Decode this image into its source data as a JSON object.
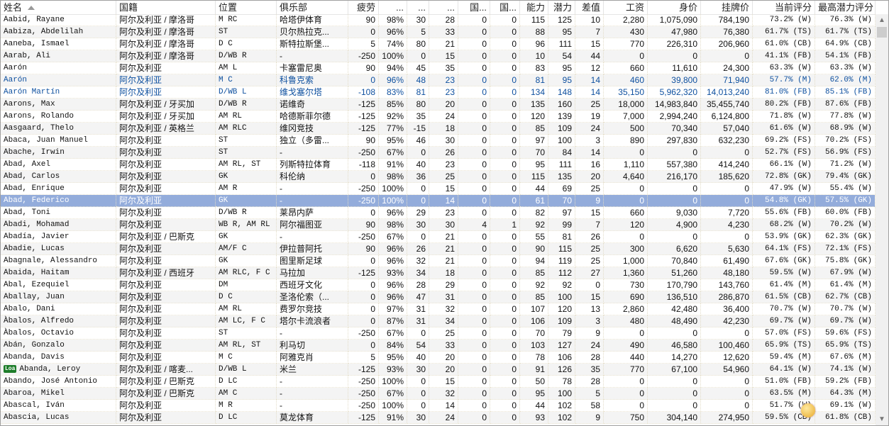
{
  "columns": [
    "姓名",
    "国籍",
    "位置",
    "俱乐部",
    "疲劳",
    "...",
    "...",
    "...",
    "国...",
    "国...",
    "能力",
    "潜力",
    "差值",
    "工资",
    "身价",
    "挂牌价",
    "当前评分",
    "最高潜力评分"
  ],
  "sort_column": "姓名",
  "colors": {
    "selected_row": "#93acdb",
    "highlight_text": "#0d4f9e",
    "loan_badge": "#1e7d2a"
  },
  "selected_row_index": 15,
  "highlighted_rows": [
    5,
    6
  ],
  "rows": [
    {
      "badge": "",
      "cells": [
        "Aabid, Rayane",
        "阿尔及利亚 / 摩洛哥",
        "M RC",
        "哈塔伊体育",
        "90",
        "98%",
        "30",
        "28",
        "0",
        "0",
        "115",
        "125",
        "10",
        "2,280",
        "1,075,090",
        "784,190",
        "73.2% (W)",
        "76.3% (W)"
      ]
    },
    {
      "badge": "",
      "cells": [
        "Aabiza, Abdelilah",
        "阿尔及利亚 / 摩洛哥",
        "ST",
        "贝尔热拉克...",
        "0",
        "96%",
        "5",
        "33",
        "0",
        "0",
        "88",
        "95",
        "7",
        "430",
        "47,980",
        "76,380",
        "61.7% (TS)",
        "61.7% (TS)"
      ]
    },
    {
      "badge": "",
      "cells": [
        "Aaneba, Ismael",
        "阿尔及利亚 / 摩洛哥",
        "D C",
        "斯特拉斯堡...",
        "5",
        "74%",
        "80",
        "21",
        "0",
        "0",
        "96",
        "111",
        "15",
        "770",
        "226,310",
        "206,960",
        "61.0% (CB)",
        "64.9% (CB)"
      ]
    },
    {
      "badge": "",
      "cells": [
        "Aarab, Ali",
        "阿尔及利亚 / 摩洛哥",
        "D/WB R",
        "-",
        "-250",
        "100%",
        "0",
        "15",
        "0",
        "0",
        "10",
        "54",
        "44",
        "0",
        "0",
        "0",
        "41.1% (FB)",
        "54.1% (FB)"
      ]
    },
    {
      "badge": "",
      "cells": [
        "Aarón",
        "阿尔及利亚",
        "AM L",
        "卡塞雷尼奥",
        "90",
        "94%",
        "45",
        "35",
        "0",
        "0",
        "83",
        "95",
        "12",
        "660",
        "11,610",
        "24,300",
        "63.3% (W)",
        "63.3% (W)"
      ]
    },
    {
      "badge": "",
      "cells": [
        "Aarón",
        "阿尔及利亚",
        "M C",
        "科鲁克索",
        "0",
        "96%",
        "48",
        "23",
        "0",
        "0",
        "81",
        "95",
        "14",
        "460",
        "39,800",
        "71,940",
        "57.7% (M)",
        "62.0% (M)"
      ]
    },
    {
      "badge": "",
      "cells": [
        "Aarón Martín",
        "阿尔及利亚",
        "D/WB L",
        "维戈塞尔塔",
        "-108",
        "83%",
        "81",
        "23",
        "0",
        "0",
        "134",
        "148",
        "14",
        "35,150",
        "5,962,320",
        "14,013,240",
        "81.0% (FB)",
        "85.1% (FB)"
      ]
    },
    {
      "badge": "",
      "cells": [
        "Aarons, Max",
        "阿尔及利亚 / 牙买加",
        "D/WB R",
        "诺维奇",
        "-125",
        "85%",
        "80",
        "20",
        "0",
        "0",
        "135",
        "160",
        "25",
        "18,000",
        "14,983,840",
        "35,455,740",
        "80.2% (FB)",
        "87.6% (FB)"
      ]
    },
    {
      "badge": "",
      "cells": [
        "Aarons, Rolando",
        "阿尔及利亚 / 牙买加",
        "AM RL",
        "哈德斯菲尔德",
        "-125",
        "92%",
        "35",
        "24",
        "0",
        "0",
        "120",
        "139",
        "19",
        "7,000",
        "2,994,240",
        "6,124,800",
        "71.8% (W)",
        "77.8% (W)"
      ]
    },
    {
      "badge": "",
      "cells": [
        "Aasgaard, Thelo",
        "阿尔及利亚 / 英格兰",
        "AM RLC",
        "维冈竞技",
        "-125",
        "77%",
        "-15",
        "18",
        "0",
        "0",
        "85",
        "109",
        "24",
        "500",
        "70,340",
        "57,040",
        "61.6% (W)",
        "68.9% (W)"
      ]
    },
    {
      "badge": "",
      "cells": [
        "Abaca, Juan Manuel",
        "阿尔及利亚",
        "ST",
        "独立（多雷...",
        "90",
        "95%",
        "46",
        "30",
        "0",
        "0",
        "97",
        "100",
        "3",
        "890",
        "297,830",
        "632,230",
        "69.2% (FS)",
        "70.2% (FS)"
      ]
    },
    {
      "badge": "",
      "cells": [
        "Abache, Irwin",
        "阿尔及利亚",
        "ST",
        "-",
        "-250",
        "67%",
        "0",
        "26",
        "0",
        "0",
        "70",
        "84",
        "14",
        "0",
        "0",
        "0",
        "52.7% (FS)",
        "56.9% (FS)"
      ]
    },
    {
      "badge": "",
      "cells": [
        "Abad, Axel",
        "阿尔及利亚",
        "AM RL, ST",
        "列斯特拉体育",
        "-118",
        "91%",
        "40",
        "23",
        "0",
        "0",
        "95",
        "111",
        "16",
        "1,110",
        "557,380",
        "414,240",
        "66.1% (W)",
        "71.2% (W)"
      ]
    },
    {
      "badge": "",
      "cells": [
        "Abad, Carlos",
        "阿尔及利亚",
        "GK",
        "科伦纳",
        "0",
        "98%",
        "36",
        "25",
        "0",
        "0",
        "115",
        "135",
        "20",
        "4,640",
        "216,170",
        "185,620",
        "72.8% (GK)",
        "79.4% (GK)"
      ]
    },
    {
      "badge": "",
      "cells": [
        "Abad, Enrique",
        "阿尔及利亚",
        "AM R",
        "-",
        "-250",
        "100%",
        "0",
        "15",
        "0",
        "0",
        "44",
        "69",
        "25",
        "0",
        "0",
        "0",
        "47.9% (W)",
        "55.4% (W)"
      ]
    },
    {
      "badge": "",
      "cells": [
        "Abad, Federico",
        "阿尔及利亚",
        "GK",
        "-",
        "-250",
        "100%",
        "0",
        "14",
        "0",
        "0",
        "61",
        "70",
        "9",
        "0",
        "0",
        "0",
        "54.8% (GK)",
        "57.5% (GK)"
      ]
    },
    {
      "badge": "",
      "cells": [
        "Abad, Toni",
        "阿尔及利亚",
        "D/WB R",
        "莱昂内萨",
        "0",
        "96%",
        "29",
        "23",
        "0",
        "0",
        "82",
        "97",
        "15",
        "660",
        "9,030",
        "7,720",
        "55.6% (FB)",
        "60.0% (FB)"
      ]
    },
    {
      "badge": "",
      "cells": [
        "Abadi, Mohamad",
        "阿尔及利亚",
        "WB R, AM RL",
        "阿尔福图亚",
        "90",
        "98%",
        "30",
        "30",
        "4",
        "1",
        "92",
        "99",
        "7",
        "120",
        "4,900",
        "4,230",
        "68.2% (W)",
        "70.2% (W)"
      ]
    },
    {
      "badge": "",
      "cells": [
        "Abadía, Javier",
        "阿尔及利亚 / 巴斯克",
        "GK",
        "-",
        "-250",
        "67%",
        "0",
        "21",
        "0",
        "0",
        "55",
        "81",
        "26",
        "0",
        "0",
        "0",
        "53.9% (GK)",
        "62.3% (GK)"
      ]
    },
    {
      "badge": "",
      "cells": [
        "Abadie, Lucas",
        "阿尔及利亚",
        "AM/F C",
        "伊拉普阿托",
        "90",
        "96%",
        "26",
        "21",
        "0",
        "0",
        "90",
        "115",
        "25",
        "300",
        "6,620",
        "5,630",
        "64.1% (FS)",
        "72.1% (FS)"
      ]
    },
    {
      "badge": "",
      "cells": [
        "Abagnale, Alessandro",
        "阿尔及利亚",
        "GK",
        "图里斯足球",
        "0",
        "96%",
        "32",
        "21",
        "0",
        "0",
        "94",
        "119",
        "25",
        "1,000",
        "70,840",
        "61,490",
        "67.6% (GK)",
        "75.8% (GK)"
      ]
    },
    {
      "badge": "",
      "cells": [
        "Abaida, Haitam",
        "阿尔及利亚 / 西班牙",
        "AM RLC, F C",
        "马拉加",
        "-125",
        "93%",
        "34",
        "18",
        "0",
        "0",
        "85",
        "112",
        "27",
        "1,360",
        "51,260",
        "48,180",
        "59.5% (W)",
        "67.9% (W)"
      ]
    },
    {
      "badge": "",
      "cells": [
        "Abal, Ezequiel",
        "阿尔及利亚",
        "DM",
        "西班牙文化",
        "0",
        "96%",
        "28",
        "29",
        "0",
        "0",
        "92",
        "92",
        "0",
        "730",
        "170,790",
        "143,760",
        "61.4% (M)",
        "61.4% (M)"
      ]
    },
    {
      "badge": "",
      "cells": [
        "Aballay, Juan",
        "阿尔及利亚",
        "D C",
        "圣洛伦索（...",
        "0",
        "96%",
        "47",
        "31",
        "0",
        "0",
        "85",
        "100",
        "15",
        "690",
        "136,510",
        "286,870",
        "61.5% (CB)",
        "62.7% (CB)"
      ]
    },
    {
      "badge": "",
      "cells": [
        "Abalo, Dani",
        "阿尔及利亚",
        "AM RL",
        "费罗尔竞技",
        "0",
        "97%",
        "31",
        "32",
        "0",
        "0",
        "107",
        "120",
        "13",
        "2,860",
        "42,480",
        "36,400",
        "70.7% (W)",
        "70.7% (W)"
      ]
    },
    {
      "badge": "",
      "cells": [
        "Àbalos, Alfredo",
        "阿尔及利亚",
        "AM LC, F C",
        "塔尔卡流浪者",
        "0",
        "87%",
        "31",
        "34",
        "0",
        "0",
        "106",
        "109",
        "3",
        "480",
        "48,490",
        "42,230",
        "69.7% (W)",
        "69.7% (W)"
      ]
    },
    {
      "badge": "",
      "cells": [
        "Àbalos, Octavio",
        "阿尔及利亚",
        "ST",
        "-",
        "-250",
        "67%",
        "0",
        "25",
        "0",
        "0",
        "70",
        "79",
        "9",
        "0",
        "0",
        "0",
        "57.0% (FS)",
        "59.6% (FS)"
      ]
    },
    {
      "badge": "",
      "cells": [
        "Abán, Gonzalo",
        "阿尔及利亚",
        "AM RL, ST",
        "利马切",
        "0",
        "84%",
        "54",
        "33",
        "0",
        "0",
        "103",
        "127",
        "24",
        "490",
        "46,580",
        "100,460",
        "65.9% (TS)",
        "65.9% (TS)"
      ]
    },
    {
      "badge": "",
      "cells": [
        "Abanda, Davis",
        "阿尔及利亚",
        "M C",
        "阿雅克肖",
        "5",
        "95%",
        "40",
        "20",
        "0",
        "0",
        "78",
        "106",
        "28",
        "440",
        "14,270",
        "12,620",
        "59.4% (M)",
        "67.6% (M)"
      ]
    },
    {
      "badge": "Loa",
      "cells": [
        "Abanda, Leroy",
        "阿尔及利亚 / 喀麦...",
        "D/WB L",
        "米兰",
        "-125",
        "93%",
        "30",
        "20",
        "0",
        "0",
        "91",
        "126",
        "35",
        "770",
        "67,100",
        "54,960",
        "64.1% (W)",
        "74.1% (W)"
      ]
    },
    {
      "badge": "",
      "cells": [
        "Abando, José Antonio",
        "阿尔及利亚 / 巴斯克",
        "D LC",
        "-",
        "-250",
        "100%",
        "0",
        "15",
        "0",
        "0",
        "50",
        "78",
        "28",
        "0",
        "0",
        "0",
        "51.0% (FB)",
        "59.2% (FB)"
      ]
    },
    {
      "badge": "",
      "cells": [
        "Abaroa, Mikel",
        "阿尔及利亚 / 巴斯克",
        "AM C",
        "-",
        "-250",
        "67%",
        "0",
        "32",
        "0",
        "0",
        "95",
        "100",
        "5",
        "0",
        "0",
        "0",
        "63.5% (M)",
        "64.3% (M)"
      ]
    },
    {
      "badge": "",
      "cells": [
        "Abascal, Iván",
        "阿尔及利亚",
        "M R",
        "-",
        "-250",
        "100%",
        "0",
        "14",
        "0",
        "0",
        "44",
        "102",
        "58",
        "0",
        "0",
        "0",
        "51.7% (W)",
        "69.1% (W)"
      ]
    },
    {
      "badge": "",
      "cells": [
        "Abascia, Lucas",
        "阿尔及利亚",
        "D LC",
        "莫龙体育",
        "-125",
        "91%",
        "30",
        "24",
        "0",
        "0",
        "93",
        "102",
        "9",
        "750",
        "304,140",
        "274,950",
        "59.5% (CB)",
        "61.8% (CB)"
      ]
    }
  ]
}
